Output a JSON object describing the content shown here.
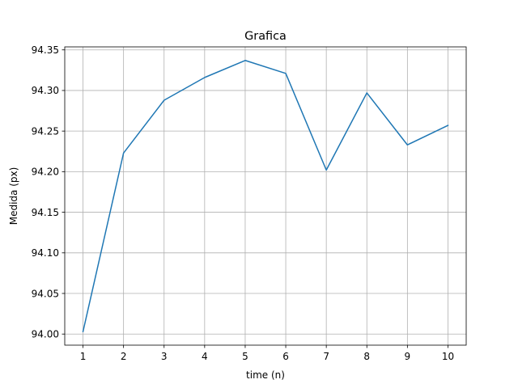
{
  "chart_data": {
    "type": "line",
    "title": "Grafica",
    "xlabel": "time (n)",
    "ylabel": "Medida (px)",
    "x": [
      1,
      2,
      3,
      4,
      5,
      6,
      7,
      8,
      9,
      10
    ],
    "series": [
      {
        "values": [
          94.003,
          94.223,
          94.288,
          94.316,
          94.337,
          94.321,
          94.202,
          94.297,
          94.233,
          94.257
        ],
        "color": "#1f77b4"
      }
    ],
    "xticks": [
      1,
      2,
      3,
      4,
      5,
      6,
      7,
      8,
      9,
      10
    ],
    "yticks": [
      "94.00",
      "94.05",
      "94.10",
      "94.15",
      "94.20",
      "94.25",
      "94.30",
      "94.35"
    ],
    "xlim": [
      0.55,
      10.45
    ],
    "ylim": [
      93.9863,
      94.3537
    ],
    "grid": true
  }
}
